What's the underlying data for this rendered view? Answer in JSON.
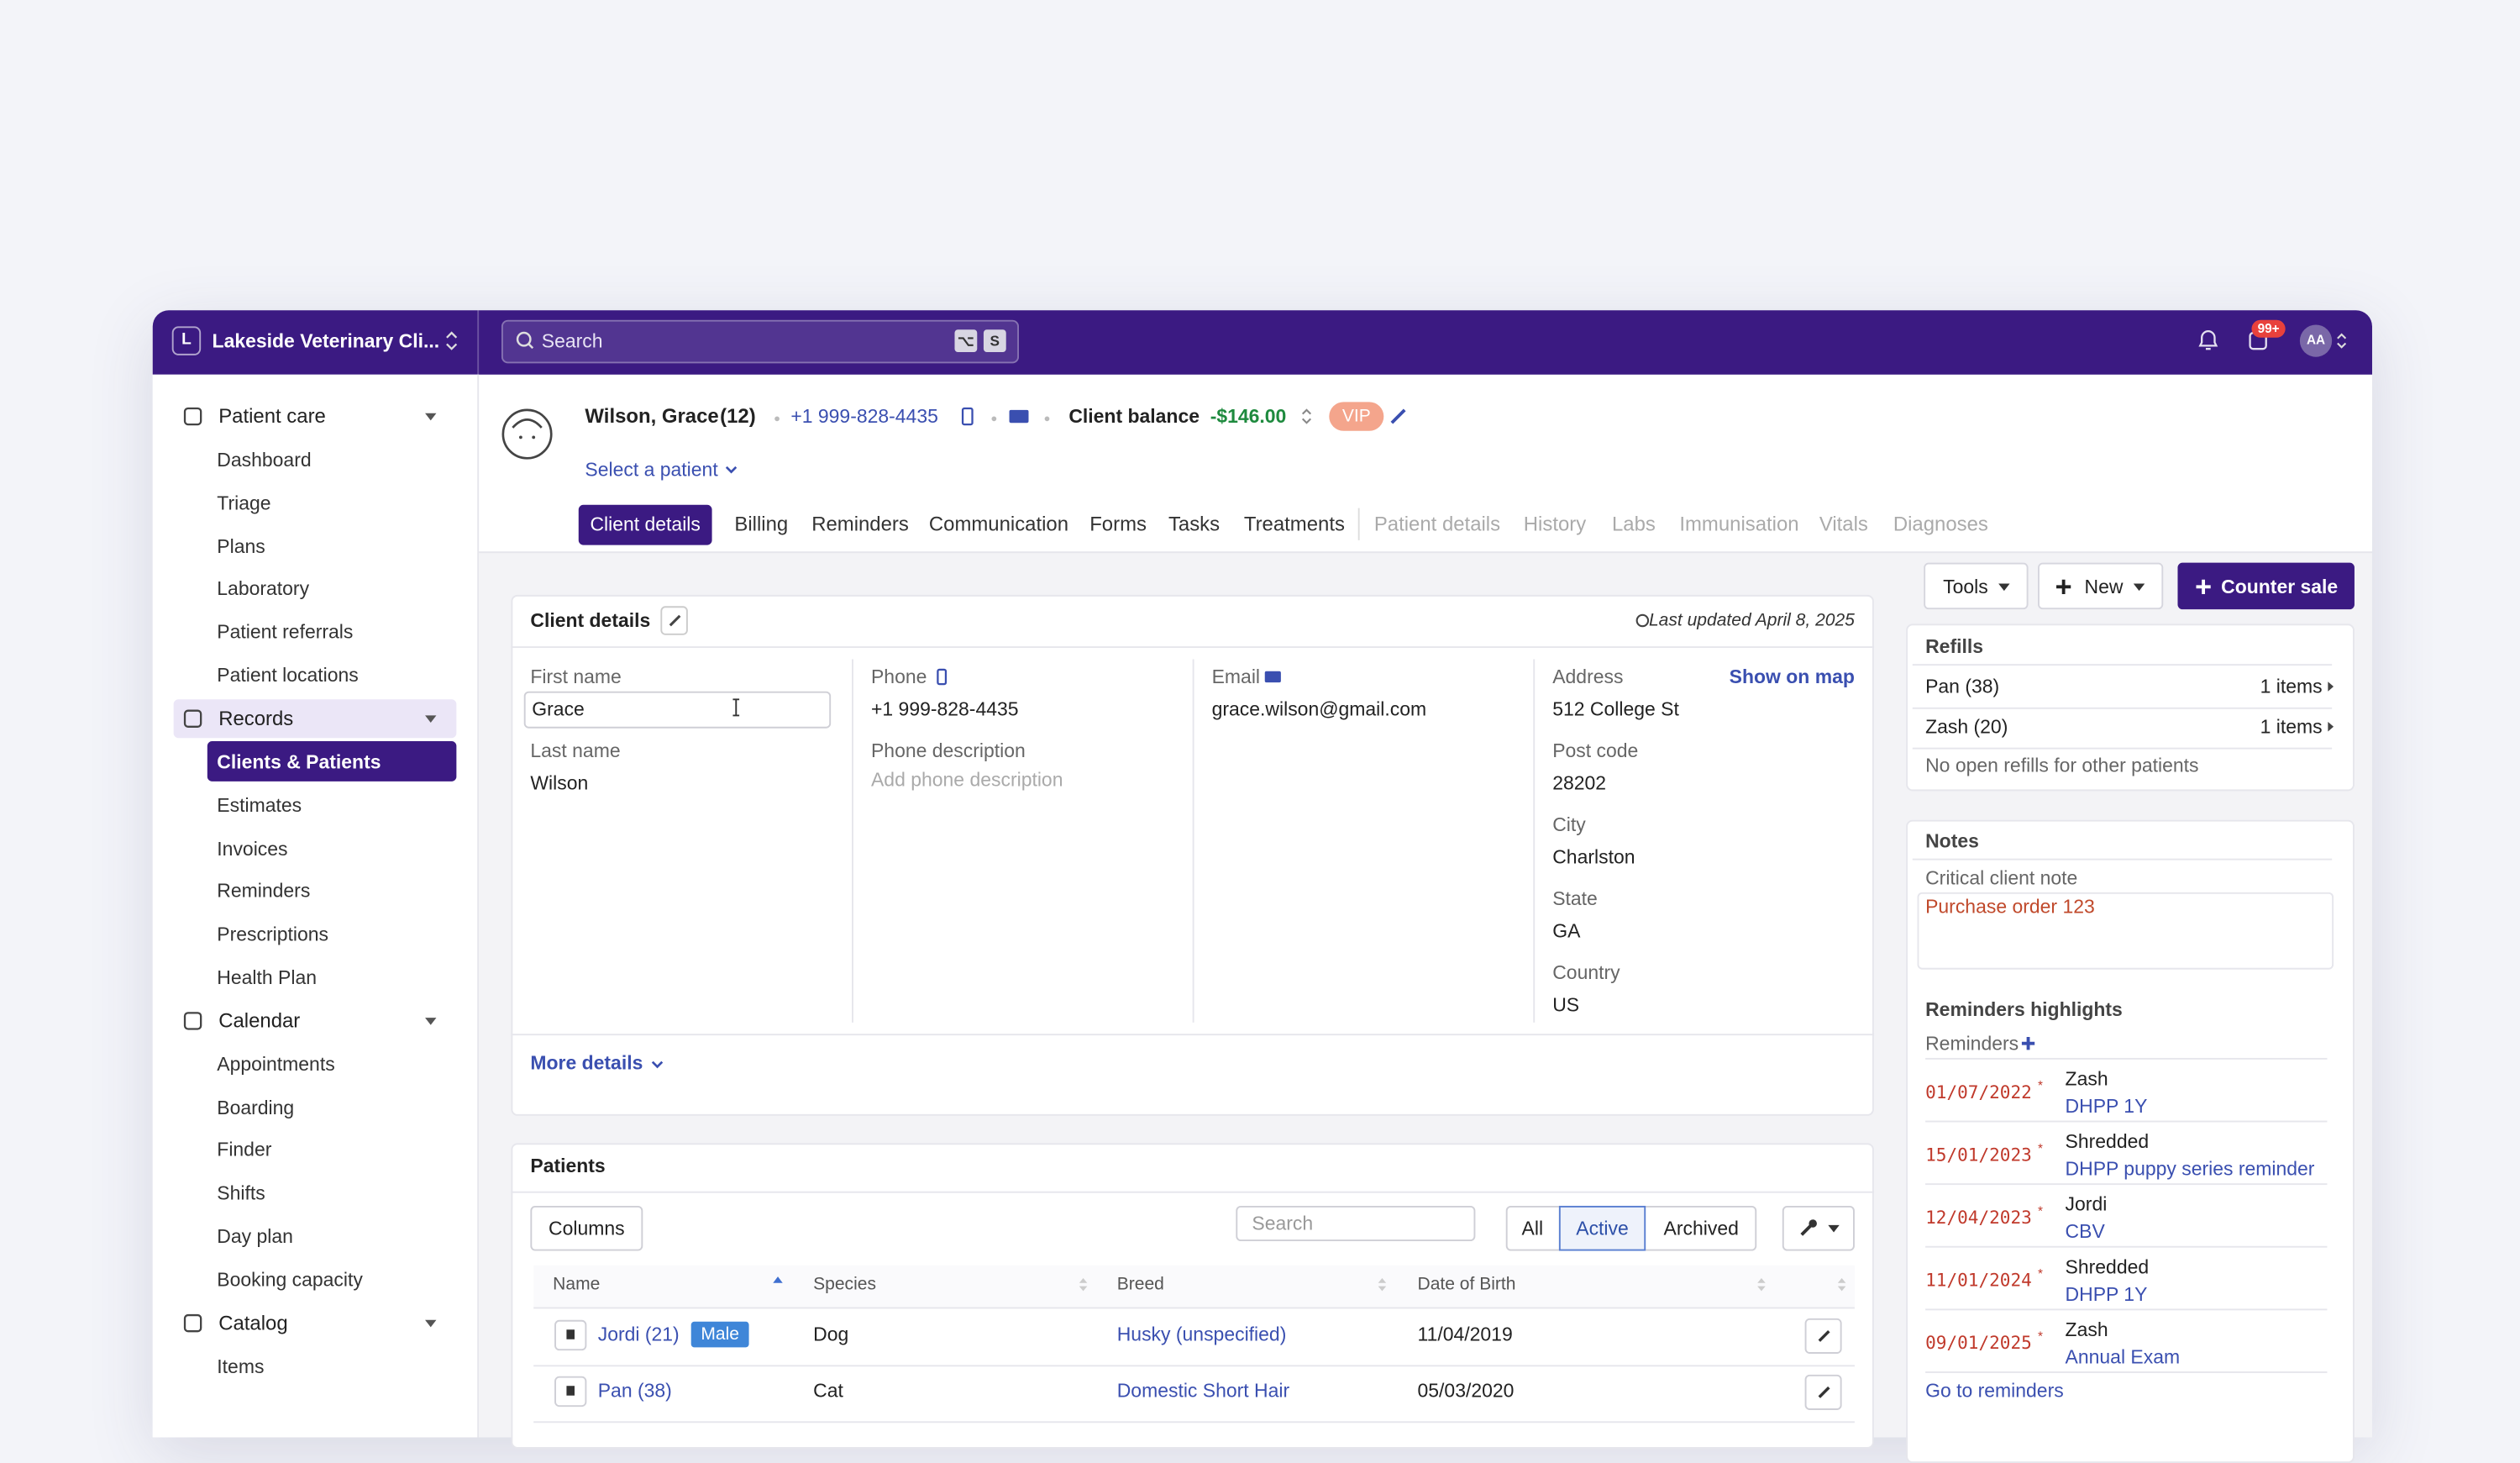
{
  "topbar": {
    "clinic_initial": "L",
    "clinic_name": "Lakeside Veterinary Cli...",
    "search_placeholder": "Search",
    "shortcut_keys": [
      "⌥",
      "S"
    ],
    "notification_count": "99+",
    "user_initials": "AA"
  },
  "sidebar": {
    "sections": [
      {
        "label": "Patient care",
        "items": [
          "Dashboard",
          "Triage",
          "Plans",
          "Laboratory",
          "Patient referrals",
          "Patient locations"
        ]
      },
      {
        "label": "Records",
        "items": [
          "Clients & Patients",
          "Estimates",
          "Invoices",
          "Reminders",
          "Prescriptions",
          "Health Plan"
        ]
      },
      {
        "label": "Calendar",
        "items": [
          "Appointments",
          "Boarding",
          "Finder",
          "Shifts",
          "Day plan",
          "Booking capacity"
        ]
      },
      {
        "label": "Catalog",
        "items": [
          "Items"
        ]
      }
    ]
  },
  "client_header": {
    "name": "Wilson, Grace",
    "count": "(12)",
    "phone": "+1 999-828-4435",
    "balance_label": "Client balance",
    "balance": "-$146.00",
    "badge": "VIP",
    "select_patient": "Select a patient"
  },
  "tabs": {
    "enabled": [
      "Client details",
      "Billing",
      "Reminders",
      "Communication",
      "Forms",
      "Tasks",
      "Treatments"
    ],
    "disabled": [
      "Patient details",
      "History",
      "Labs",
      "Immunisation",
      "Vitals",
      "Diagnoses"
    ]
  },
  "actions": [
    "Tools",
    "New",
    "Counter sale"
  ],
  "client_details": {
    "title": "Client details",
    "last_updated": "Last updated April 8, 2025",
    "show_on_map": "Show on map",
    "more_details": "More details",
    "columns": [
      [
        {
          "label": "First name",
          "value": "Grace"
        },
        {
          "label": "Last name",
          "value": "Wilson"
        }
      ],
      [
        {
          "label": "Phone",
          "value": "+1 999-828-4435"
        },
        {
          "label": "Phone description",
          "placeholder": "Add phone description"
        }
      ],
      [
        {
          "label": "Email",
          "value": "grace.wilson@gmail.com"
        }
      ],
      [
        {
          "label": "Address",
          "value": "512 College St"
        },
        {
          "label": "Post code",
          "value": "28202"
        },
        {
          "label": "City",
          "value": "Charlston"
        },
        {
          "label": "State",
          "value": "GA"
        },
        {
          "label": "Country",
          "value": "US"
        }
      ]
    ]
  },
  "patients": {
    "title": "Patients",
    "columns_button": "Columns",
    "search_placeholder": "Search",
    "filters": [
      "All",
      "Active",
      "Archived"
    ],
    "headers": [
      "Name",
      "Species",
      "Breed",
      "Date of Birth"
    ],
    "rows": [
      {
        "name": "Jordi (21)",
        "sex": "Male",
        "species": "Dog",
        "breed": "Husky (unspecified)",
        "dob": "11/04/2019"
      },
      {
        "name": "Pan (38)",
        "species": "Cat",
        "breed": "Domestic Short Hair",
        "dob": "05/03/2020"
      }
    ]
  },
  "refills": {
    "title": "Refills",
    "rows": [
      {
        "patient": "Pan (38)",
        "items": "1 items"
      },
      {
        "patient": "Zash (20)",
        "items": "1 items"
      }
    ],
    "empty_note": "No open refills for other patients"
  },
  "notes": {
    "title": "Notes",
    "label": "Critical client note",
    "text": "Purchase order 123"
  },
  "reminders": {
    "title": "Reminders highlights",
    "label": "Reminders",
    "marker": "*",
    "entries": [
      {
        "date": "01/07/2022",
        "patient": "Zash",
        "reminder": "DHPP 1Y"
      },
      {
        "date": "15/01/2023",
        "patient": "Shredded",
        "reminder": "DHPP puppy series reminder"
      },
      {
        "date": "12/04/2023",
        "patient": "Jordi",
        "reminder": "CBV"
      },
      {
        "date": "11/01/2024",
        "patient": "Shredded",
        "reminder": "DHPP 1Y"
      },
      {
        "date": "09/01/2025",
        "patient": "Zash",
        "reminder": "Annual Exam"
      }
    ],
    "link": "Go to reminders"
  }
}
